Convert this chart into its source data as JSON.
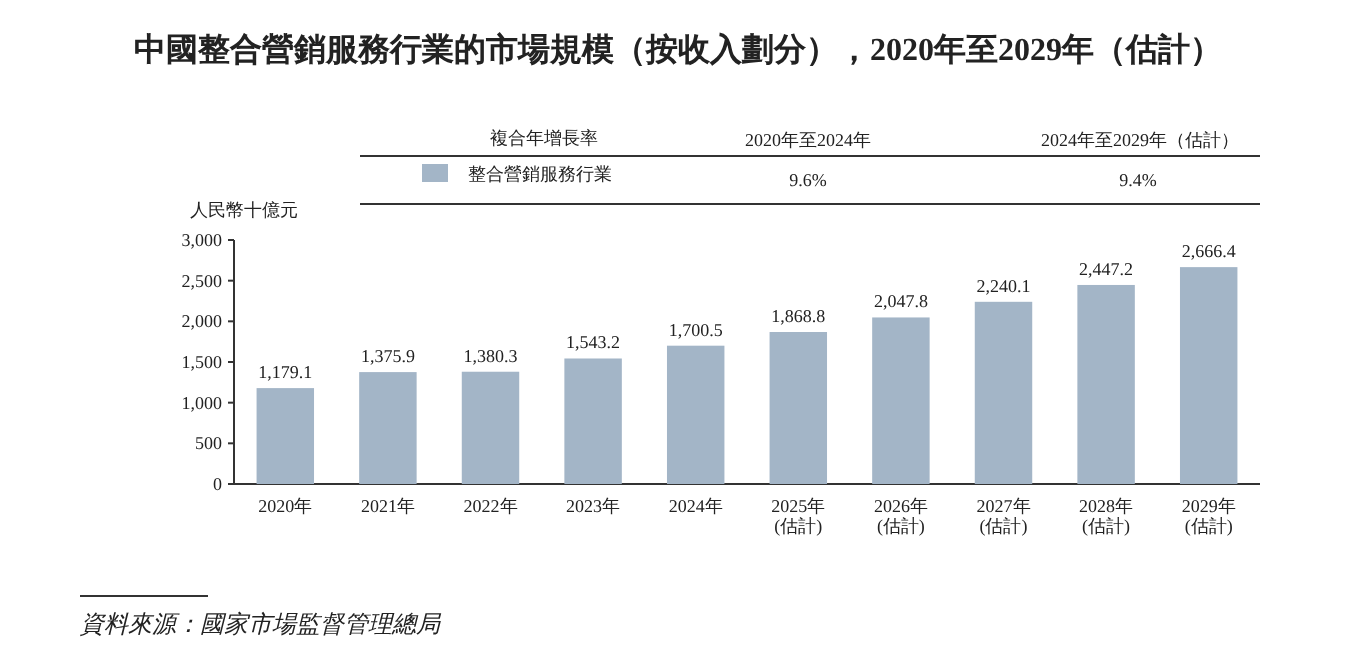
{
  "chart_data": {
    "type": "bar",
    "title": "中國整合營銷服務行業的市場規模（按收入劃分），2020年至2029年（估計）",
    "ylabel": "人民幣十億元",
    "categories": [
      "2020年",
      "2021年",
      "2022年",
      "2023年",
      "2024年",
      "2025年\n(估計)",
      "2026年\n(估計)",
      "2027年\n(估計)",
      "2028年\n(估計)",
      "2029年\n(估計)"
    ],
    "series": [
      {
        "name": "整合營銷服務行業",
        "color": "#a3b5c7",
        "values": [
          1179.1,
          1375.9,
          1380.3,
          1543.2,
          1700.5,
          1868.8,
          2047.8,
          2240.1,
          2447.2,
          2666.4
        ],
        "value_labels": [
          "1,179.1",
          "1,375.9",
          "1,380.3",
          "1,543.2",
          "1,700.5",
          "1,868.8",
          "2,047.8",
          "2,240.1",
          "2,447.2",
          "2,666.4"
        ]
      }
    ],
    "ylim": [
      0,
      3000
    ],
    "yticks": [
      0,
      {
        "value": 500,
        "label": "500"
      },
      {
        "value": 1000,
        "label": "1,000"
      },
      {
        "value": 1500,
        "label": "1,500"
      },
      {
        "value": 2000,
        "label": "2,000"
      },
      {
        "value": 2500,
        "label": "2,500"
      },
      {
        "value": 3000,
        "label": "3,000"
      }
    ],
    "grid": false,
    "legend": "top",
    "annotations": [
      "複合年增長率",
      "2020年至2024年",
      "2024年至2029年（估計）",
      "9.6%",
      "9.4%",
      "資料來源：國家市場監督管理總局"
    ]
  }
}
